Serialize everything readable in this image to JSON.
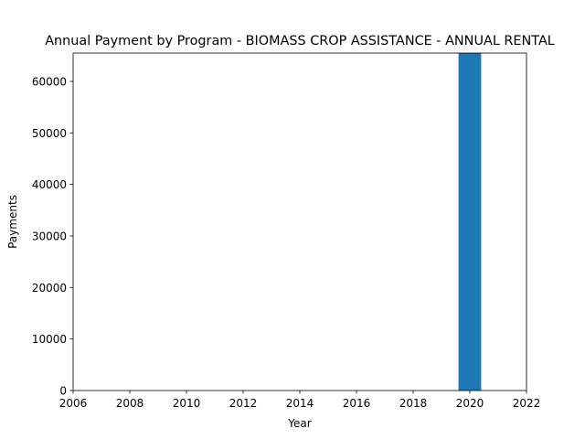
{
  "chart_data": {
    "type": "bar",
    "title": "Annual Payment by Program - BIOMASS CROP ASSISTANCE - ANNUAL RENTAL",
    "xlabel": "Year",
    "ylabel": "Payments",
    "x": [
      2020
    ],
    "values": [
      65500
    ],
    "bar_width_years": 0.8,
    "xlim": [
      2006,
      2022
    ],
    "ylim": [
      0,
      65500
    ],
    "xticks": [
      "2006",
      "2008",
      "2010",
      "2012",
      "2014",
      "2016",
      "2018",
      "2020",
      "2022"
    ],
    "yticks": [
      "0",
      "10000",
      "20000",
      "30000",
      "40000",
      "50000",
      "60000"
    ],
    "grid": false,
    "bar_color": "#1f77b4"
  }
}
